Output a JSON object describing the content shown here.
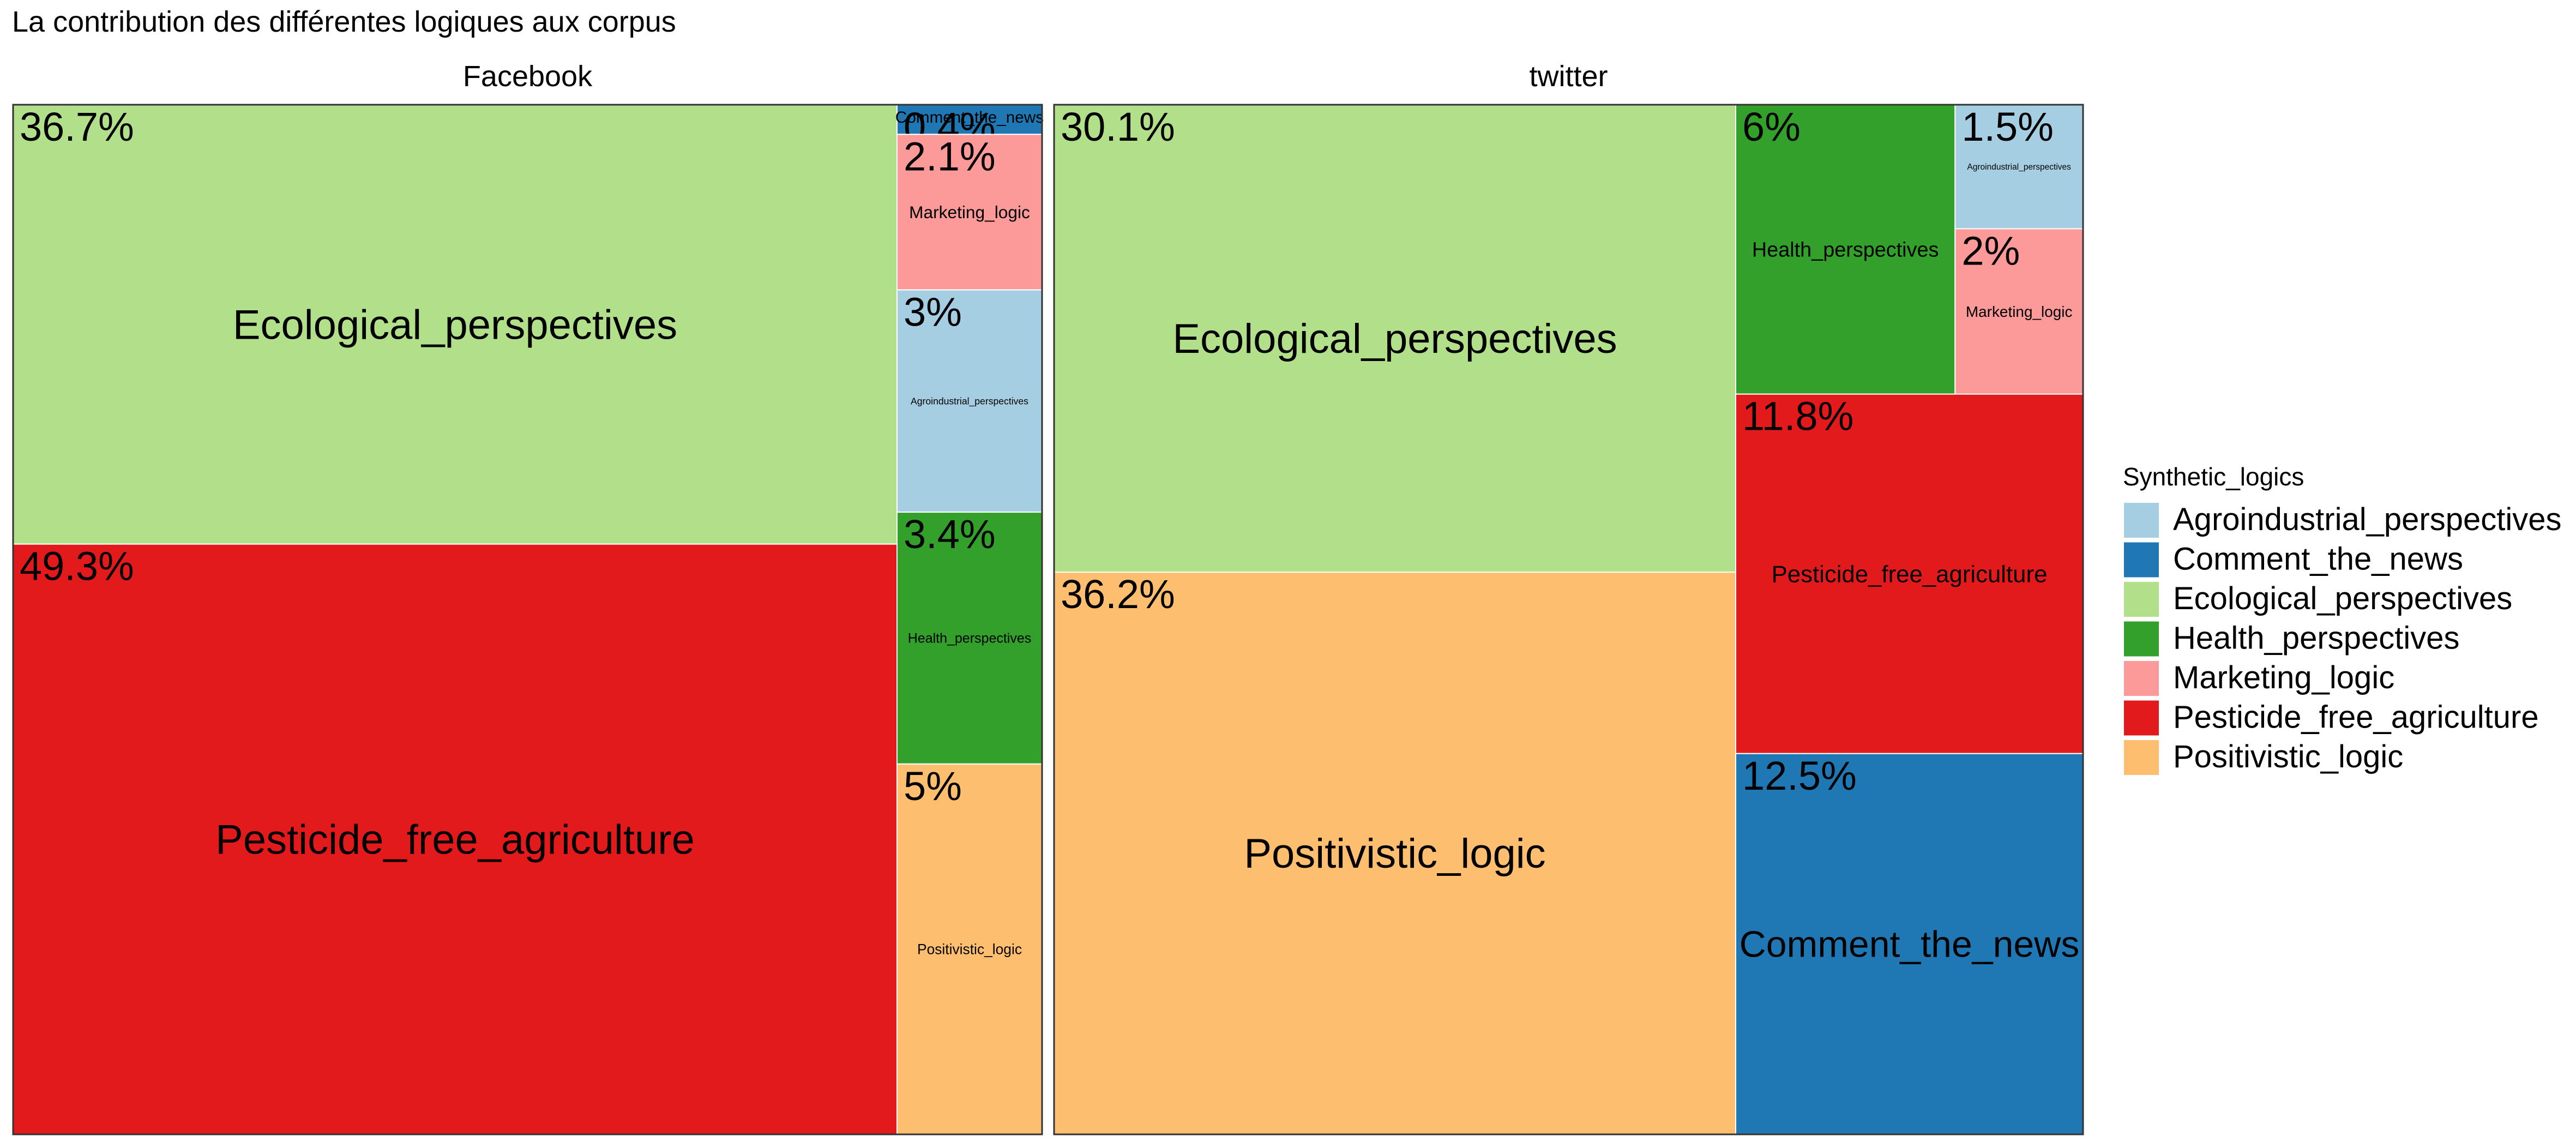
{
  "chart_data": {
    "type": "treemap",
    "title": "La contribution des différentes logiques aux corpus",
    "legend": {
      "title": "Synthetic_logics",
      "placement": "right",
      "items": [
        {
          "label": "Agroindustrial_perspectives",
          "color": "#A6CEE3"
        },
        {
          "label": "Comment_the_news",
          "color": "#1F78B4"
        },
        {
          "label": "Ecological_perspectives",
          "color": "#B2DF8A"
        },
        {
          "label": "Health_perspectives",
          "color": "#33A02C"
        },
        {
          "label": "Marketing_logic",
          "color": "#FB9A99"
        },
        {
          "label": "Pesticide_free_agriculture",
          "color": "#E31A1C"
        },
        {
          "label": "Positivistic_logic",
          "color": "#FDBF6F"
        }
      ]
    },
    "panels": [
      {
        "name": "Facebook",
        "cells": [
          {
            "category": "Ecological_perspectives",
            "pct_label": "36.7%",
            "value": 36.7
          },
          {
            "category": "Pesticide_free_agriculture",
            "pct_label": "49.3%",
            "value": 49.3
          },
          {
            "category": "Comment_the_news",
            "pct_label": "0.4%",
            "value": 0.4
          },
          {
            "category": "Marketing_logic",
            "pct_label": "2.1%",
            "value": 2.1
          },
          {
            "category": "Agroindustrial_perspectives",
            "pct_label": "3%",
            "value": 3.0
          },
          {
            "category": "Health_perspectives",
            "pct_label": "3.4%",
            "value": 3.4
          },
          {
            "category": "Positivistic_logic",
            "pct_label": "5%",
            "value": 5.0
          }
        ]
      },
      {
        "name": "twitter",
        "cells": [
          {
            "category": "Ecological_perspectives",
            "pct_label": "30.1%",
            "value": 30.1
          },
          {
            "category": "Positivistic_logic",
            "pct_label": "36.2%",
            "value": 36.2
          },
          {
            "category": "Health_perspectives",
            "pct_label": "6%",
            "value": 6.0
          },
          {
            "category": "Agroindustrial_perspectives",
            "pct_label": "1.5%",
            "value": 1.5
          },
          {
            "category": "Marketing_logic",
            "pct_label": "2%",
            "value": 2.0
          },
          {
            "category": "Pesticide_free_agriculture",
            "pct_label": "11.8%",
            "value": 11.8
          },
          {
            "category": "Comment_the_news",
            "pct_label": "12.5%",
            "value": 12.5
          }
        ]
      }
    ]
  }
}
